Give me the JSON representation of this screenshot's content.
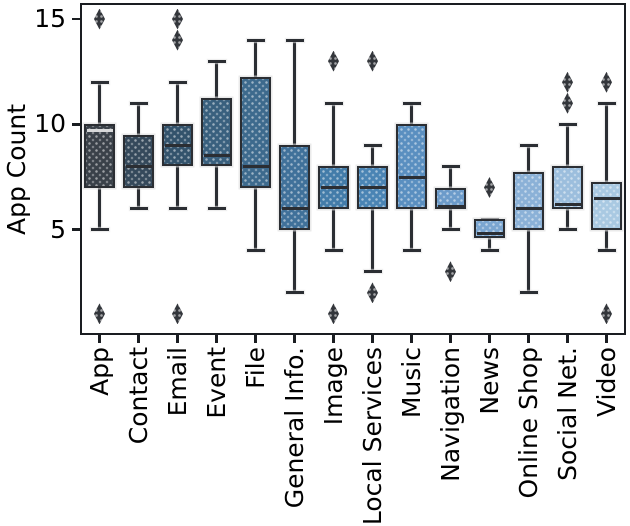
{
  "chart_data": {
    "type": "boxplot",
    "title": "",
    "xlabel": "",
    "ylabel": "App Count",
    "yticks": [
      15,
      10,
      5
    ],
    "ylim": [
      0,
      15.76
    ],
    "grid": false,
    "legend": "none",
    "categories": [
      "App",
      "Contact",
      "Email",
      "Event",
      "File",
      "General Info.",
      "Image",
      "Local Services",
      "Music",
      "Navigation",
      "News",
      "Online Shop",
      "Social Net.",
      "Video"
    ],
    "series": [
      {
        "label": "App",
        "whisker_low": 5,
        "q1": 7,
        "median": 9.7,
        "q3": 10,
        "whisker_high": 12,
        "outliers": [
          15,
          1
        ],
        "fill": "#3A4149",
        "median_color": "#d8d9da"
      },
      {
        "label": "Contact",
        "whisker_low": 6,
        "q1": 7,
        "median": 8,
        "q3": 9.5,
        "whisker_high": 11,
        "outliers": [],
        "fill": "#35495B",
        "median_color": "#2b2e33"
      },
      {
        "label": "Email",
        "whisker_low": 6,
        "q1": 8,
        "median": 9,
        "q3": 10,
        "whisker_high": 12,
        "outliers": [
          15,
          14,
          1
        ],
        "fill": "#33536C",
        "median_color": "#2b2e33"
      },
      {
        "label": "Event",
        "whisker_low": 6,
        "q1": 8,
        "median": 8.5,
        "q3": 11.25,
        "whisker_high": 13,
        "outliers": [],
        "fill": "#39607E",
        "median_color": "#2b2e33"
      },
      {
        "label": "File",
        "whisker_low": 4,
        "q1": 7,
        "median": 8,
        "q3": 12.25,
        "whisker_high": 14,
        "outliers": [],
        "fill": "#3D6A8D",
        "median_color": "#2b2e33"
      },
      {
        "label": "General Info.",
        "whisker_low": 2,
        "q1": 5,
        "median": 6,
        "q3": 9,
        "whisker_high": 14,
        "outliers": [],
        "fill": "#40719A",
        "median_color": "#2b2e33"
      },
      {
        "label": "Image",
        "whisker_low": 4,
        "q1": 6,
        "median": 7,
        "q3": 8,
        "whisker_high": 11,
        "outliers": [
          13,
          1
        ],
        "fill": "#437CA9",
        "median_color": "#2b2e33"
      },
      {
        "label": "Local Services",
        "whisker_low": 3,
        "q1": 6,
        "median": 7,
        "q3": 8,
        "whisker_high": 9,
        "outliers": [
          13,
          2
        ],
        "fill": "#4A84B4",
        "median_color": "#2b2e33"
      },
      {
        "label": "Music",
        "whisker_low": 4,
        "q1": 6,
        "median": 7.5,
        "q3": 10,
        "whisker_high": 11,
        "outliers": [],
        "fill": "#5A8FC0",
        "median_color": "#2b2e33"
      },
      {
        "label": "Navigation",
        "whisker_low": 5,
        "q1": 6,
        "median": 6.1,
        "q3": 7,
        "whisker_high": 8,
        "outliers": [
          3
        ],
        "fill": "#6C9BCA",
        "median_color": "#2b2e33"
      },
      {
        "label": "News",
        "whisker_low": 4,
        "q1": 4.6,
        "median": 4.8,
        "q3": 5.5,
        "whisker_high": 5.5,
        "outliers": [
          7
        ],
        "fill": "#7BA6D1",
        "median_color": "#2b2e33"
      },
      {
        "label": "Online Shop",
        "whisker_low": 2,
        "q1": 5,
        "median": 6,
        "q3": 7.75,
        "whisker_high": 9,
        "outliers": [],
        "fill": "#8BB1D7",
        "median_color": "#2b2e33"
      },
      {
        "label": "Social Net.",
        "whisker_low": 5,
        "q1": 6,
        "median": 6.2,
        "q3": 8,
        "whisker_high": 10,
        "outliers": [
          12,
          11
        ],
        "fill": "#9CBEDD",
        "median_color": "#2b2e33"
      },
      {
        "label": "Video",
        "whisker_low": 4,
        "q1": 5,
        "median": 6.5,
        "q3": 7.25,
        "whisker_high": 11,
        "outliers": [
          12,
          1
        ],
        "fill": "#A9C9E2",
        "median_color": "#2b2e33"
      }
    ],
    "colors": {
      "edge": "#2b2e33",
      "outlier_marker": "#33363b",
      "frame": "#1a1d21",
      "background": "#ffffff"
    }
  }
}
